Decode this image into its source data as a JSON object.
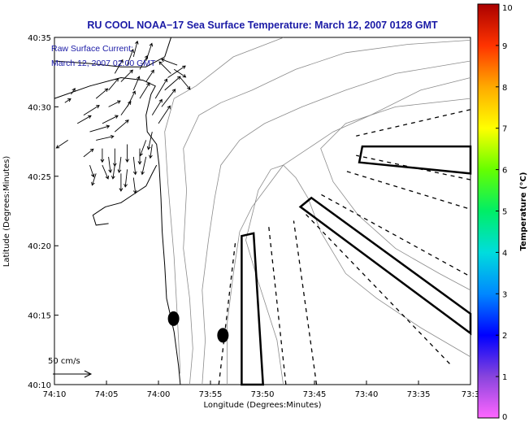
{
  "chart_data": {
    "type": "map",
    "title": "RU COOL  NOAA−17  Sea Surface Temperature:  March 12, 2007 0128 GMT",
    "annotation": [
      "Raw Surface Current:",
      "March 12, 2007 02:00 GMT"
    ],
    "xlabel": "Longitude (Degrees:Minutes)",
    "ylabel": "Latitude (Degrees:Minutes)",
    "xlim": [
      -74.1667,
      -73.5
    ],
    "ylim": [
      40.1667,
      40.5833
    ],
    "xticks": [
      {
        "v": -74.1667,
        "label": "74:10"
      },
      {
        "v": -74.0833,
        "label": "74:05"
      },
      {
        "v": -74.0,
        "label": "74:00"
      },
      {
        "v": -73.9167,
        "label": "73:55"
      },
      {
        "v": -73.8333,
        "label": "73:50"
      },
      {
        "v": -73.75,
        "label": "73:45"
      },
      {
        "v": -73.6667,
        "label": "73:40"
      },
      {
        "v": -73.5833,
        "label": "73:35"
      },
      {
        "v": -73.5,
        "label": "73:3"
      }
    ],
    "yticks": [
      {
        "v": 40.1667,
        "label": "40:10"
      },
      {
        "v": 40.25,
        "label": "40:15"
      },
      {
        "v": 40.3333,
        "label": "40:20"
      },
      {
        "v": 40.4167,
        "label": "40:25"
      },
      {
        "v": 40.5,
        "label": "40:30"
      },
      {
        "v": 40.5833,
        "label": "40:35"
      }
    ],
    "scale_label": "50 cm/s",
    "colorbar": {
      "label": "Temperature (°C)",
      "range": [
        0,
        10
      ],
      "ticks": [
        "0",
        "1",
        "2",
        "3",
        "4",
        "5",
        "6",
        "7",
        "8",
        "9",
        "10"
      ],
      "colors": [
        "#ff66ff",
        "#8844dd",
        "#0000ff",
        "#0088ff",
        "#00dddd",
        "#00ee66",
        "#66ff00",
        "#ffff00",
        "#ffaa00",
        "#ff3300",
        "#aa0000"
      ]
    },
    "dots": [
      {
        "lon": -73.9758,
        "lat": 40.2458
      },
      {
        "lon": -73.8967,
        "lat": 40.2258
      }
    ],
    "boxes": [
      [
        [
          -73.8667,
          40.1667
        ],
        [
          -73.8667,
          40.345
        ],
        [
          -73.8475,
          40.3483
        ],
        [
          -73.8325,
          40.1667
        ]
      ],
      [
        [
          -73.6783,
          40.4333
        ],
        [
          -73.6733,
          40.4525
        ],
        [
          -73.5,
          40.4525
        ],
        [
          -73.5,
          40.42
        ]
      ],
      [
        [
          -73.7725,
          40.38
        ],
        [
          -73.755,
          40.3908
        ],
        [
          -73.5,
          40.2517
        ],
        [
          -73.5,
          40.2283
        ]
      ]
    ],
    "dashed_lines": [
      [
        [
          -73.9033,
          40.1667
        ],
        [
          -73.8767,
          40.3383
        ]
      ],
      [
        [
          -73.7958,
          40.1667
        ],
        [
          -73.8233,
          40.3567
        ]
      ],
      [
        [
          -73.7467,
          40.1667
        ],
        [
          -73.7833,
          40.3633
        ]
      ],
      [
        [
          -73.5333,
          40.1917
        ],
        [
          -73.7667,
          40.3733
        ]
      ],
      [
        [
          -73.505,
          40.2983
        ],
        [
          -73.74,
          40.395
        ]
      ],
      [
        [
          -73.505,
          40.3783
        ],
        [
          -73.7017,
          40.4233
        ]
      ],
      [
        [
          -73.5,
          40.4125
        ],
        [
          -73.6833,
          40.4417
        ]
      ],
      [
        [
          -73.5,
          40.4967
        ],
        [
          -73.6833,
          40.465
        ]
      ]
    ],
    "coast": [
      [
        -73.965,
        40.1667
      ],
      [
        -73.968,
        40.19
      ],
      [
        -73.975,
        40.23
      ],
      [
        -73.987,
        40.27
      ],
      [
        -73.99,
        40.31
      ],
      [
        -73.994,
        40.35
      ],
      [
        -73.996,
        40.39
      ],
      [
        -73.999,
        40.43
      ],
      [
        -74.003,
        40.455
      ],
      [
        -74.018,
        40.47
      ],
      [
        -74.02,
        40.49
      ],
      [
        -74.012,
        40.515
      ],
      [
        -74.005,
        40.525
      ],
      [
        -74.025,
        40.532
      ],
      [
        -74.06,
        40.535
      ],
      [
        -74.11,
        40.525
      ],
      [
        -74.1667,
        40.51
      ]
    ],
    "inlet": [
      [
        -74.003,
        40.43
      ],
      [
        -74.01,
        40.42
      ],
      [
        -74.02,
        40.405
      ],
      [
        -74.04,
        40.395
      ],
      [
        -74.06,
        40.385
      ],
      [
        -74.085,
        40.38
      ],
      [
        -74.105,
        40.37
      ],
      [
        -74.1,
        40.358
      ],
      [
        -74.08,
        40.36
      ]
    ],
    "north_shore": [
      [
        -74.1667,
        40.555
      ],
      [
        -74.11,
        40.552
      ],
      [
        -74.06,
        40.548
      ],
      [
        -74.02,
        40.548
      ],
      [
        -73.99,
        40.56
      ],
      [
        -73.98,
        40.583
      ]
    ],
    "contours": [
      [
        [
          -73.965,
          40.18
        ],
        [
          -73.97,
          40.25
        ],
        [
          -73.975,
          40.32
        ],
        [
          -73.985,
          40.41
        ],
        [
          -73.99,
          40.47
        ],
        [
          -73.975,
          40.51
        ],
        [
          -73.94,
          40.525
        ],
        [
          -73.88,
          40.56
        ],
        [
          -73.8,
          40.583
        ]
      ],
      [
        [
          -73.95,
          40.1667
        ],
        [
          -73.945,
          40.21
        ],
        [
          -73.95,
          40.27
        ],
        [
          -73.96,
          40.33
        ],
        [
          -73.955,
          40.4
        ],
        [
          -73.96,
          40.45
        ],
        [
          -73.935,
          40.49
        ],
        [
          -73.9,
          40.505
        ],
        [
          -73.85,
          40.52
        ],
        [
          -73.78,
          40.545
        ],
        [
          -73.7,
          40.565
        ],
        [
          -73.6,
          40.575
        ],
        [
          -73.5,
          40.58
        ]
      ],
      [
        [
          -73.93,
          40.1667
        ],
        [
          -73.925,
          40.22
        ],
        [
          -73.93,
          40.28
        ],
        [
          -73.92,
          40.34
        ],
        [
          -73.91,
          40.39
        ],
        [
          -73.9,
          40.43
        ],
        [
          -73.87,
          40.46
        ],
        [
          -73.83,
          40.48
        ],
        [
          -73.77,
          40.5
        ],
        [
          -73.7,
          40.52
        ],
        [
          -73.62,
          40.54
        ],
        [
          -73.5,
          40.555
        ]
      ],
      [
        [
          -73.89,
          40.1667
        ],
        [
          -73.89,
          40.24
        ],
        [
          -73.88,
          40.3
        ],
        [
          -73.87,
          40.35
        ],
        [
          -73.85,
          40.38
        ],
        [
          -73.83,
          40.4
        ],
        [
          -73.8,
          40.43
        ],
        [
          -73.76,
          40.45
        ],
        [
          -73.72,
          40.47
        ],
        [
          -73.66,
          40.49
        ],
        [
          -73.58,
          40.52
        ],
        [
          -73.5,
          40.535
        ]
      ],
      [
        [
          -73.8,
          40.1667
        ],
        [
          -73.81,
          40.22
        ],
        [
          -73.84,
          40.29
        ],
        [
          -73.86,
          40.34
        ],
        [
          -73.84,
          40.4
        ],
        [
          -73.82,
          40.425
        ],
        [
          -73.8,
          40.43
        ],
        [
          -73.78,
          40.415
        ],
        [
          -73.76,
          40.39
        ],
        [
          -73.74,
          40.35
        ],
        [
          -73.7,
          40.3
        ],
        [
          -73.65,
          40.27
        ],
        [
          -73.58,
          40.235
        ],
        [
          -73.5,
          40.2
        ]
      ],
      [
        [
          -73.5,
          40.28
        ],
        [
          -73.55,
          40.3
        ],
        [
          -73.62,
          40.33
        ],
        [
          -73.68,
          40.37
        ],
        [
          -73.72,
          40.41
        ],
        [
          -73.74,
          40.45
        ],
        [
          -73.7,
          40.48
        ],
        [
          -73.62,
          40.5
        ],
        [
          -73.5,
          40.51
        ]
      ]
    ],
    "currents": [
      [
        -74.08,
        40.5,
        6,
        3
      ],
      [
        -74.09,
        40.48,
        8,
        4
      ],
      [
        -74.07,
        40.47,
        7,
        6
      ],
      [
        -74.06,
        40.49,
        5,
        7
      ],
      [
        -74.05,
        40.5,
        4,
        8
      ],
      [
        -74.04,
        40.52,
        3,
        7
      ],
      [
        -74.03,
        40.51,
        5,
        8
      ],
      [
        -74.02,
        40.53,
        4,
        6
      ],
      [
        -74.1,
        40.46,
        9,
        2
      ],
      [
        -74.11,
        40.47,
        10,
        3
      ],
      [
        -74.12,
        40.49,
        8,
        5
      ],
      [
        -74.13,
        40.48,
        7,
        4
      ],
      [
        -74.1,
        40.51,
        6,
        5
      ],
      [
        -74.08,
        40.52,
        5,
        6
      ],
      [
        -74.07,
        40.54,
        4,
        7
      ],
      [
        -74.06,
        40.53,
        6,
        6
      ],
      [
        -74.05,
        40.55,
        3,
        8
      ],
      [
        -74.04,
        40.56,
        2,
        8
      ],
      [
        -74.03,
        40.545,
        4,
        7
      ],
      [
        -74.02,
        40.555,
        3,
        9
      ],
      [
        -74.09,
        40.45,
        0,
        -7
      ],
      [
        -74.08,
        40.44,
        1,
        -8
      ],
      [
        -74.07,
        40.45,
        0,
        -9
      ],
      [
        -74.06,
        40.44,
        -1,
        -8
      ],
      [
        -74.05,
        40.455,
        0,
        -9
      ],
      [
        -74.04,
        40.44,
        1,
        -9
      ],
      [
        -74.03,
        40.45,
        0,
        -8
      ],
      [
        -74.02,
        40.44,
        -2,
        -9
      ],
      [
        -74.05,
        40.425,
        -1,
        -9
      ],
      [
        -74.04,
        40.415,
        1,
        -8
      ],
      [
        -74.06,
        40.42,
        0,
        -9
      ],
      [
        -74.07,
        40.43,
        -1,
        -7
      ],
      [
        -74.11,
        40.43,
        2,
        -6
      ],
      [
        -74.1,
        40.42,
        -2,
        -6
      ],
      [
        -74.09,
        40.43,
        3,
        -7
      ],
      [
        -74.12,
        40.44,
        5,
        4
      ],
      [
        -74.0,
        40.48,
        6,
        9
      ],
      [
        -74.01,
        40.49,
        5,
        8
      ],
      [
        -73.995,
        40.5,
        7,
        9
      ],
      [
        -74.005,
        40.51,
        6,
        10
      ],
      [
        -73.99,
        40.52,
        8,
        7
      ],
      [
        -73.985,
        40.535,
        9,
        6
      ],
      [
        -73.98,
        40.54,
        -6,
        6
      ],
      [
        -73.975,
        40.545,
        6,
        -4
      ],
      [
        -73.97,
        40.55,
        -8,
        3
      ],
      [
        -73.965,
        40.535,
        5,
        -6
      ],
      [
        -74.15,
        40.505,
        3,
        2
      ],
      [
        -74.14,
        40.515,
        2,
        3
      ],
      [
        -74.145,
        40.46,
        -6,
        -4
      ],
      [
        -74.02,
        40.46,
        -3,
        -8
      ],
      [
        -74.01,
        40.47,
        -2,
        -9
      ],
      [
        -74.01,
        40.455,
        -1,
        -7
      ]
    ]
  }
}
